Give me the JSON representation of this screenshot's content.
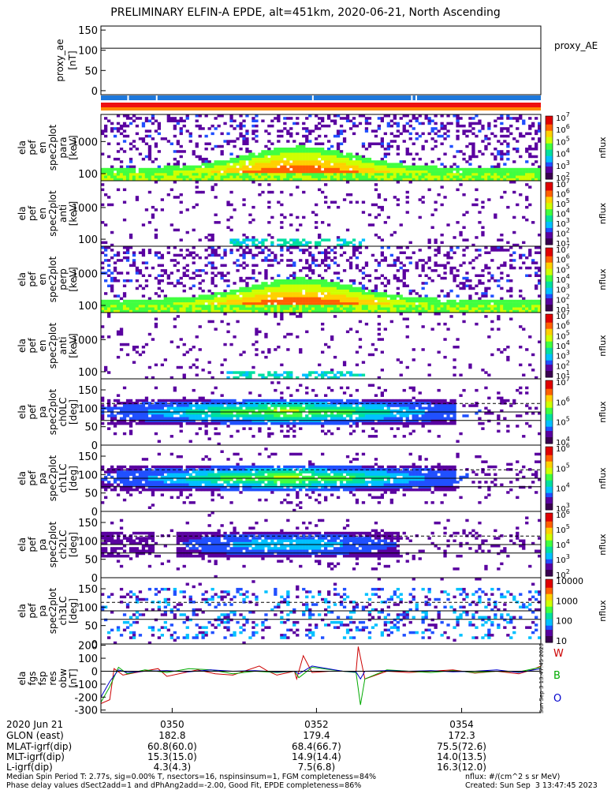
{
  "title": "PRELIMINARY ELFIN-A EPDE, alt=451km, 2020-06-21, North Ascending",
  "colors": {
    "background": "#ffffff",
    "axis": "#000000",
    "spin_bar": "#1e78dc",
    "orbit_bar_red": "#ee1111",
    "orbit_bar_orange": "#ff8800",
    "w_component": "#cc0000",
    "b_component": "#00aa00",
    "o_component": "#0000cc"
  },
  "colorbar_scale": [
    "#ffffff",
    "#3a0050",
    "#5a00a0",
    "#2050ff",
    "#00c0ff",
    "#00e0a0",
    "#40ff40",
    "#d0ff00",
    "#ffd000",
    "#ff6000",
    "#e00000"
  ],
  "chart_data": [
    {
      "panel": "proxy_ae",
      "type": "line",
      "ylabel": [
        "proxy_ae",
        "[nT]"
      ],
      "yticks": [
        "150",
        "100",
        "50",
        "0"
      ],
      "ylim": [
        -10,
        160
      ],
      "reference_line": 105,
      "right_label": "proxy_AE"
    },
    {
      "panel": "spin_bar",
      "type": "table",
      "description_gaps_fraction": [
        0.06,
        0.125,
        0.48,
        0.705,
        0.715
      ]
    },
    {
      "panel": "en_para",
      "type": "heatmap",
      "ylabel": [
        "ela",
        "pef",
        "en",
        "spec2plot",
        "para",
        "[keV]"
      ],
      "yticks": [
        "1000",
        "100"
      ],
      "log_y": true,
      "ylim_keV": [
        60,
        7000
      ],
      "zlabel": "nflux",
      "ztick_exponents": [
        "2",
        "3",
        "4",
        "5",
        "6",
        "7"
      ],
      "structure": "dense",
      "peak_time_fraction": 0.45,
      "peak_energy_keV": 350
    },
    {
      "panel": "en_anti",
      "type": "heatmap",
      "ylabel": [
        "ela",
        "pef",
        "en",
        "spec2plot",
        "anti",
        "[keV]"
      ],
      "yticks": [
        "1000",
        "100"
      ],
      "log_y": true,
      "ylim_keV": [
        60,
        7000
      ],
      "zlabel": "nflux",
      "ztick_exponents": [
        "1",
        "2",
        "3",
        "4",
        "5",
        "6",
        "7"
      ],
      "structure": "sparse"
    },
    {
      "panel": "en_perp",
      "type": "heatmap",
      "ylabel": [
        "ela",
        "pef",
        "en",
        "spec2plot",
        "perp",
        "[keV]"
      ],
      "yticks": [
        "1000",
        "100"
      ],
      "log_y": true,
      "ylim_keV": [
        60,
        7000
      ],
      "zlabel": "nflux",
      "ztick_exponents": [
        "1",
        "2",
        "3",
        "4",
        "5",
        "6",
        "7"
      ],
      "structure": "dense",
      "peak_time_fraction": 0.45,
      "peak_energy_keV": 350
    },
    {
      "panel": "en_anti2",
      "type": "heatmap",
      "ylabel": [
        "ela",
        "pef",
        "en",
        "spec2plot",
        "anti",
        "[keV]"
      ],
      "yticks": [
        "1000",
        "100"
      ],
      "log_y": true,
      "ylim_keV": [
        60,
        7000
      ],
      "zlabel": "nflux",
      "ztick_exponents": [
        "1",
        "2",
        "3",
        "4",
        "5",
        "6",
        "7"
      ],
      "structure": "sparse"
    },
    {
      "panel": "pa_ch0",
      "type": "heatmap",
      "ylabel": [
        "ela",
        "pef",
        "pa",
        "spec2plot",
        "ch0LC",
        "[deg]"
      ],
      "yticks": [
        "150",
        "100",
        "50",
        "0"
      ],
      "ylim_deg": [
        0,
        180
      ],
      "losscone_lines_deg": [
        67,
        90
      ],
      "dashed_line_deg": 113,
      "zlabel": "nflux",
      "ztick_exponents": [
        "7",
        "6",
        "5",
        "4"
      ],
      "structure": "band"
    },
    {
      "panel": "pa_ch1",
      "type": "heatmap",
      "ylabel": [
        "ela",
        "pef",
        "pa",
        "spec2plot",
        "ch1LC",
        "[deg]"
      ],
      "yticks": [
        "150",
        "100",
        "50",
        "0"
      ],
      "ylim_deg": [
        0,
        180
      ],
      "losscone_lines_deg": [
        67,
        90
      ],
      "dashed_line_deg": 113,
      "zlabel": "nflux",
      "ztick_exponents": [
        "6",
        "5",
        "4",
        "3"
      ],
      "structure": "band"
    },
    {
      "panel": "pa_ch2",
      "type": "heatmap",
      "ylabel": [
        "ela",
        "pef",
        "pa",
        "spec2plot",
        "ch2LC",
        "[deg]"
      ],
      "yticks": [
        "150",
        "100",
        "50",
        "0"
      ],
      "ylim_deg": [
        0,
        180
      ],
      "losscone_lines_deg": [
        67,
        90
      ],
      "dashed_line_deg": 113,
      "zlabel": "nflux",
      "ztick_exponents": [
        "6",
        "5",
        "4",
        "3",
        "2"
      ],
      "structure": "band_weak"
    },
    {
      "panel": "pa_ch3",
      "type": "heatmap",
      "ylabel": [
        "ela",
        "pef",
        "pa",
        "spec2plot",
        "ch3LC",
        "[deg]"
      ],
      "yticks": [
        "150",
        "100",
        "50",
        "0"
      ],
      "ylim_deg": [
        0,
        180
      ],
      "losscone_lines_deg": [
        67,
        90
      ],
      "dashed_line_deg": 113,
      "zlabel": "nflux",
      "zticks": [
        "10000",
        "1000",
        "100",
        "10"
      ],
      "structure": "noisy"
    },
    {
      "panel": "fgs_res",
      "type": "line",
      "ylabel": [
        "ela",
        "fgs",
        "fsp",
        "res",
        "obw",
        "[nT]"
      ],
      "yticks": [
        "200",
        "100",
        "0",
        "-100",
        "-200",
        "-300"
      ],
      "ylim": [
        -320,
        210
      ],
      "series": [
        {
          "name": "W",
          "color": "#cc0000",
          "x": [
            0.0,
            0.02,
            0.03,
            0.05,
            0.08,
            0.13,
            0.15,
            0.22,
            0.26,
            0.3,
            0.36,
            0.38,
            0.4,
            0.44,
            0.445,
            0.46,
            0.48,
            0.52,
            0.55,
            0.57,
            0.58,
            0.585,
            0.6,
            0.65,
            0.7,
            0.75,
            0.8,
            0.85,
            0.9,
            0.95,
            0.98,
            1.0
          ],
          "y": [
            -250,
            -220,
            20,
            -30,
            -10,
            20,
            -40,
            10,
            -20,
            -30,
            40,
            0,
            -30,
            0,
            -60,
            120,
            -10,
            0,
            0,
            -5,
            -5,
            190,
            -60,
            0,
            -10,
            0,
            10,
            -15,
            0,
            -20,
            10,
            40
          ]
        },
        {
          "name": "B",
          "color": "#00aa00",
          "x": [
            0.0,
            0.02,
            0.04,
            0.06,
            0.1,
            0.15,
            0.2,
            0.25,
            0.3,
            0.35,
            0.4,
            0.44,
            0.45,
            0.48,
            0.55,
            0.58,
            0.59,
            0.6,
            0.65,
            0.7,
            0.75,
            0.8,
            0.85,
            0.9,
            0.95,
            1.0
          ],
          "y": [
            -240,
            -120,
            30,
            -20,
            10,
            -10,
            20,
            10,
            -20,
            0,
            -10,
            0,
            -50,
            30,
            0,
            -10,
            -260,
            -60,
            10,
            0,
            -10,
            5,
            -10,
            0,
            -5,
            30
          ]
        },
        {
          "name": "O",
          "color": "#0000cc",
          "x": [
            0.0,
            0.02,
            0.04,
            0.06,
            0.1,
            0.15,
            0.2,
            0.25,
            0.3,
            0.35,
            0.4,
            0.44,
            0.45,
            0.48,
            0.55,
            0.58,
            0.59,
            0.6,
            0.65,
            0.7,
            0.75,
            0.8,
            0.85,
            0.9,
            0.95,
            1.0
          ],
          "y": [
            -200,
            -80,
            10,
            -10,
            0,
            5,
            -5,
            10,
            0,
            5,
            -5,
            0,
            -20,
            40,
            0,
            -5,
            -60,
            0,
            5,
            0,
            5,
            -5,
            0,
            10,
            -10,
            20
          ]
        }
      ],
      "legend": [
        "W",
        "B",
        "O"
      ]
    }
  ],
  "x_axis": {
    "tick_labels": [
      "0350",
      "0352",
      "0354"
    ],
    "tick_fractions": [
      0.162,
      0.49,
      0.82
    ],
    "rows": [
      {
        "label": "2020 Jun 21",
        "values": [
          "0350",
          "0352",
          "0354"
        ]
      },
      {
        "label": "GLON (east)",
        "values": [
          "182.8",
          "179.4",
          "172.3"
        ]
      },
      {
        "label": "MLAT-igrf(dip)",
        "values": [
          "60.8(60.0)",
          "68.4(66.7)",
          "75.5(72.6)"
        ]
      },
      {
        "label": "MLT-igrf(dip)",
        "values": [
          "15.3(15.0)",
          "14.9(14.4)",
          "14.0(13.5)"
        ]
      },
      {
        "label": "L-igrf(dip)",
        "values": [
          "4.3(4.3)",
          "7.5(6.8)",
          "16.3(12.0)"
        ]
      }
    ]
  },
  "footer": {
    "line1": "Median Spin Period T: 2.77s, sig=0.00% T, nsectors=16, nspinsinsum=1, FGM completeness=84%",
    "line2": "Phase delay values dSect2add=1 and dPhAng2add=-2.00, Good Fit, EPDE completeness=86%",
    "units": "nflux: #/(cm^2 s sr MeV)",
    "created": "Created: Sun Sep  3 13:47:45 2023"
  },
  "vertical_timestamp": "Sun Sep  3 13:47:45 2023"
}
